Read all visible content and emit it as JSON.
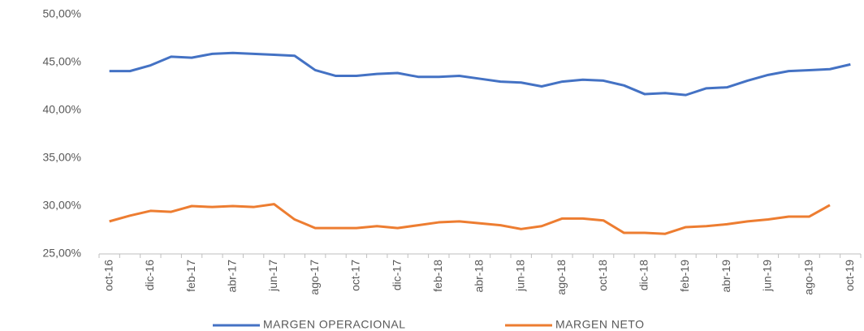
{
  "chart_data": {
    "type": "line",
    "categories": [
      "oct-16",
      null,
      "dic-16",
      null,
      "feb-17",
      null,
      "abr-17",
      null,
      "jun-17",
      null,
      "ago-17",
      null,
      "oct-17",
      null,
      "dic-17",
      null,
      "feb-18",
      null,
      "abr-18",
      null,
      "jun-18",
      null,
      "ago-18",
      null,
      "oct-18",
      null,
      "dic-18",
      null,
      "feb-19",
      null,
      "abr-19",
      null,
      "jun-19",
      null,
      "ago-19",
      null,
      "oct-19"
    ],
    "series": [
      {
        "name": "MARGEN OPERACIONAL",
        "color": "#4472c4",
        "values": [
          44.1,
          44.1,
          44.7,
          45.6,
          45.5,
          45.9,
          46.0,
          45.9,
          45.8,
          45.7,
          44.2,
          43.6,
          43.6,
          43.8,
          43.9,
          43.5,
          43.5,
          43.6,
          43.3,
          43.0,
          42.9,
          42.5,
          43.0,
          43.2,
          43.1,
          42.6,
          41.7,
          41.8,
          41.6,
          42.3,
          42.4,
          43.1,
          43.7,
          44.1,
          44.2,
          44.3,
          44.8
        ]
      },
      {
        "name": "MARGEN NETO",
        "color": "#ed7d31",
        "values": [
          28.4,
          29.0,
          29.5,
          29.4,
          30.0,
          29.9,
          30.0,
          29.9,
          30.2,
          28.6,
          27.7,
          27.7,
          27.7,
          27.9,
          27.7,
          28.0,
          28.3,
          28.4,
          28.2,
          28.0,
          27.6,
          27.9,
          28.7,
          28.7,
          28.5,
          27.2,
          27.2,
          27.1,
          27.8,
          27.9,
          28.1,
          28.4,
          28.6,
          28.9,
          28.9,
          30.1,
          null
        ]
      }
    ],
    "ylim": [
      25,
      50
    ],
    "yticks": [
      {
        "value": 25,
        "label": "25,00%"
      },
      {
        "value": 30,
        "label": "30,00%"
      },
      {
        "value": 35,
        "label": "35,00%"
      },
      {
        "value": 40,
        "label": "40,00%"
      },
      {
        "value": 45,
        "label": "45,00%"
      },
      {
        "value": 50,
        "label": "50,00%"
      }
    ],
    "legend": "bottom"
  }
}
